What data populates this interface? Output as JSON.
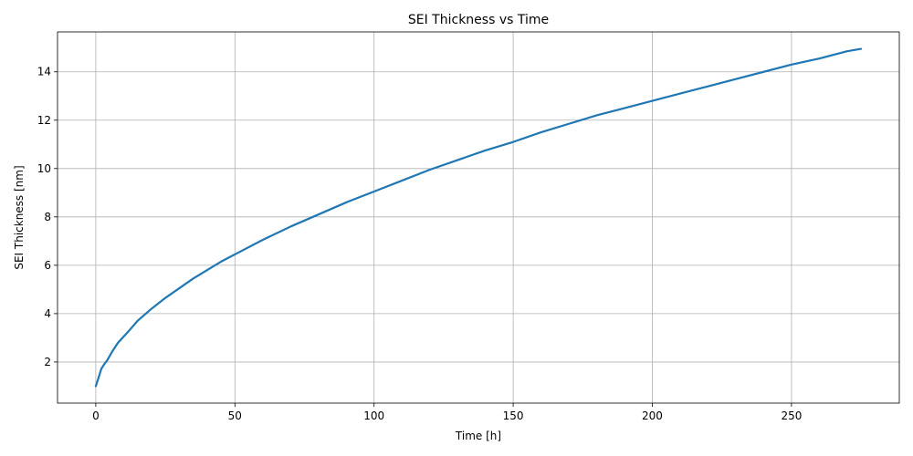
{
  "chart_data": {
    "type": "line",
    "title": "SEI Thickness vs Time",
    "xlabel": "Time [h]",
    "ylabel": "SEI Thickness [nm]",
    "xlim": [
      -13.75,
      288.75
    ],
    "ylim": [
      0.3,
      15.65
    ],
    "xticks": [
      0,
      50,
      100,
      150,
      200,
      250
    ],
    "yticks": [
      2,
      4,
      6,
      8,
      10,
      12,
      14
    ],
    "grid": true,
    "series": [
      {
        "color": "#1f77b4",
        "x": [
          0,
          1,
          2,
          3,
          4,
          5,
          6,
          8,
          10,
          12,
          15,
          20,
          25,
          30,
          35,
          40,
          45,
          50,
          60,
          70,
          80,
          90,
          100,
          110,
          120,
          130,
          140,
          150,
          160,
          170,
          180,
          190,
          200,
          210,
          220,
          230,
          240,
          250,
          260,
          270,
          275
        ],
        "y": [
          1.0,
          1.35,
          1.72,
          1.9,
          2.05,
          2.25,
          2.45,
          2.8,
          3.05,
          3.3,
          3.7,
          4.2,
          4.65,
          5.05,
          5.45,
          5.8,
          6.15,
          6.45,
          7.05,
          7.6,
          8.1,
          8.6,
          9.05,
          9.5,
          9.95,
          10.35,
          10.75,
          11.1,
          11.5,
          11.85,
          12.2,
          12.5,
          12.8,
          13.1,
          13.4,
          13.7,
          14.0,
          14.3,
          14.55,
          14.85,
          14.95
        ]
      }
    ]
  }
}
